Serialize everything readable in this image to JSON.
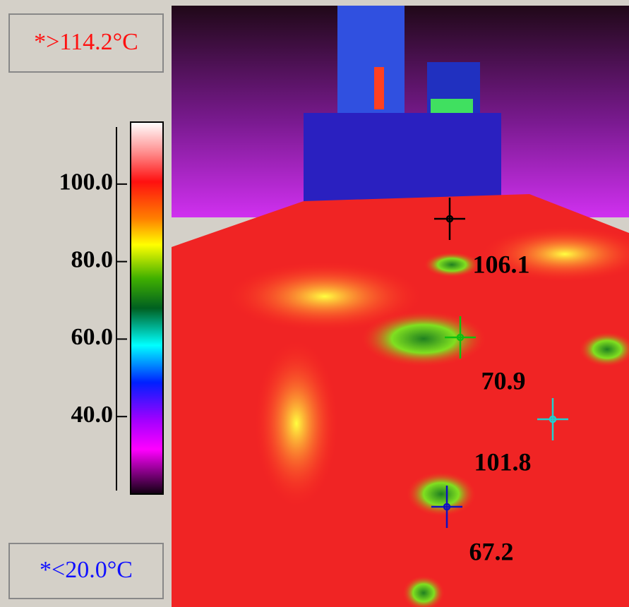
{
  "max_label": "*>114.2°C",
  "min_label": "*<20.0°C",
  "scale": {
    "lim": [
      20.0,
      116.0
    ],
    "ticks": [
      {
        "value": 100,
        "label": "100.0"
      },
      {
        "value": 80,
        "label": "80.0"
      },
      {
        "value": 60,
        "label": "60.0"
      },
      {
        "value": 40,
        "label": "40.0"
      }
    ]
  },
  "readings": [
    {
      "value": 106.1,
      "color": "#000000"
    },
    {
      "value": 70.9,
      "color": "#10c010"
    },
    {
      "value": 101.8,
      "color": "#20d0d0"
    },
    {
      "value": 67.2,
      "color": "#1010c0"
    }
  ]
}
